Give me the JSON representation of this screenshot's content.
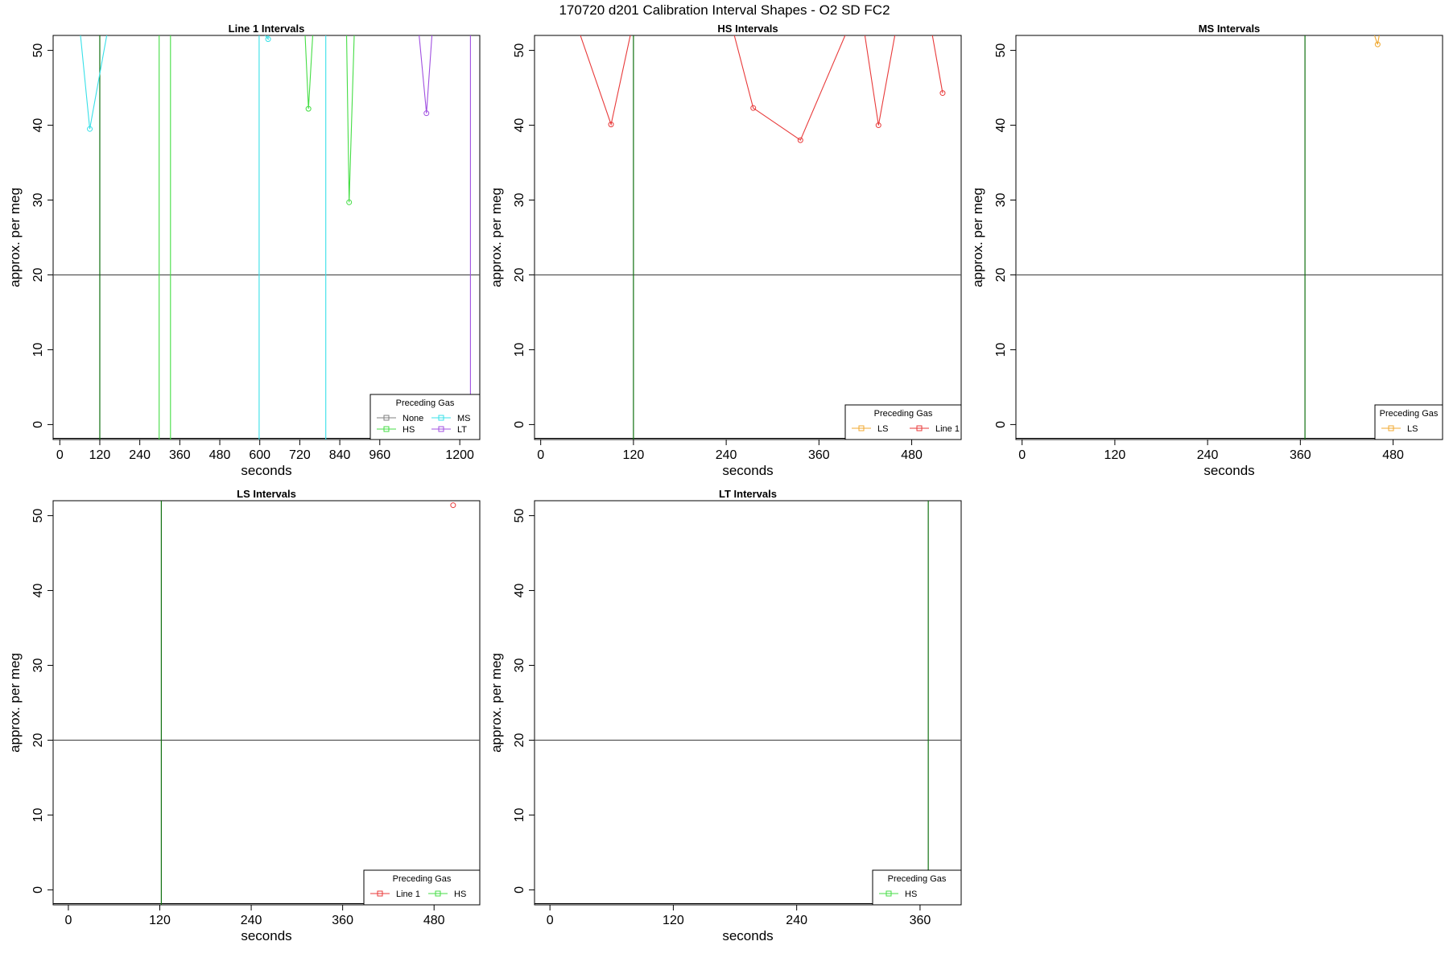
{
  "figure_title": "170720   d201   Calibration Interval Shapes - O2 SD FC2",
  "colors": {
    "None": "#808080",
    "MS": "#38e0e8",
    "HS": "#44dd44",
    "LT": "#a050e0",
    "LS": "#f0a830",
    "Line 1": "#e83a3a",
    "reference_vertical": "#107010",
    "reference_horizontal": "#555555"
  },
  "chart_data": [
    {
      "type": "line",
      "title": "Line 1 Intervals",
      "xlabel": "seconds",
      "ylabel": "approx. per meg",
      "xlim": [
        -20,
        1260
      ],
      "ylim": [
        -2,
        52
      ],
      "xticks": [
        0,
        120,
        240,
        360,
        480,
        600,
        720,
        840,
        960,
        1200
      ],
      "yticks": [
        0,
        10,
        20,
        30,
        40,
        50
      ],
      "hline": 20,
      "vlines": [
        120
      ],
      "legend": {
        "title": "Preceding Gas",
        "position": "bottom-right",
        "columns": 2,
        "entries": [
          "None",
          "MS",
          "HS",
          "LT"
        ]
      },
      "series": [
        {
          "name": "MS",
          "x": [
            60,
            90,
            145
          ],
          "y": [
            53,
            39.5,
            53
          ]
        },
        {
          "name": "MS",
          "x": [
            598,
            598,
            625,
            625
          ],
          "y": [
            -2,
            53,
            51.5,
            53
          ]
        },
        {
          "name": "MS",
          "x": [
            798,
            798
          ],
          "y": [
            -2,
            53
          ]
        },
        {
          "name": "HS",
          "x": [
            298,
            298
          ],
          "y": [
            -2,
            53
          ]
        },
        {
          "name": "HS",
          "x": [
            332,
            332
          ],
          "y": [
            -2,
            53
          ]
        },
        {
          "name": "HS",
          "x": [
            735,
            746,
            760
          ],
          "y": [
            53,
            42.2,
            53
          ]
        },
        {
          "name": "HS",
          "x": [
            860,
            868,
            884
          ],
          "y": [
            53,
            29.7,
            53
          ]
        },
        {
          "name": "LT",
          "x": [
            1076,
            1100,
            1118
          ],
          "y": [
            53,
            41.6,
            53
          ]
        },
        {
          "name": "LT",
          "x": [
            1232,
            1232
          ],
          "y": [
            53,
            -2
          ]
        }
      ]
    },
    {
      "type": "line",
      "title": "HS Intervals",
      "xlabel": "seconds",
      "ylabel": "approx. per meg",
      "xlim": [
        -8,
        544
      ],
      "ylim": [
        -2,
        52
      ],
      "xticks": [
        0,
        120,
        240,
        360,
        480
      ],
      "yticks": [
        0,
        10,
        20,
        30,
        40,
        50
      ],
      "hline": 20,
      "vlines": [
        120
      ],
      "legend": {
        "title": "Preceding Gas",
        "position": "bottom-right",
        "columns": 2,
        "entries": [
          "LS",
          "Line 1"
        ]
      },
      "series": [
        {
          "name": "LS",
          "x": [
            370
          ],
          "y": [
            52
          ]
        },
        {
          "name": "Line 1",
          "x": [
            48,
            91,
            118
          ],
          "y": [
            53,
            40.1,
            53
          ]
        },
        {
          "name": "Line 1",
          "x": [
            248,
            275,
            336,
            398
          ],
          "y": [
            53,
            42.3,
            38,
            53
          ]
        },
        {
          "name": "Line 1",
          "x": [
            418,
            437,
            460
          ],
          "y": [
            53,
            40,
            53
          ]
        },
        {
          "name": "Line 1",
          "x": [
            505,
            520
          ],
          "y": [
            53,
            44.3
          ]
        }
      ]
    },
    {
      "type": "line",
      "title": "MS Intervals",
      "xlabel": "seconds",
      "ylabel": "approx. per meg",
      "xlim": [
        -8,
        544
      ],
      "ylim": [
        -2,
        52
      ],
      "xticks": [
        0,
        120,
        240,
        360,
        480
      ],
      "yticks": [
        0,
        10,
        20,
        30,
        40,
        50
      ],
      "hline": 20,
      "vlines": [
        366
      ],
      "legend": {
        "title": "Preceding Gas",
        "position": "bottom-right",
        "columns": 1,
        "entries": [
          "LS"
        ]
      },
      "series": [
        {
          "name": "LS",
          "x": [
            452,
            456,
            460,
            462
          ],
          "y": [
            53,
            52,
            50.8,
            52
          ]
        }
      ]
    },
    {
      "type": "line",
      "title": "LS Intervals",
      "xlabel": "seconds",
      "ylabel": "approx. per meg",
      "xlim": [
        -20,
        540
      ],
      "ylim": [
        -2,
        52
      ],
      "xticks": [
        0,
        120,
        240,
        360,
        480
      ],
      "yticks": [
        0,
        10,
        20,
        30,
        40,
        50
      ],
      "hline": 20,
      "vlines": [
        122
      ],
      "legend": {
        "title": "Preceding Gas",
        "position": "bottom-right",
        "columns": 2,
        "entries": [
          "Line 1",
          "HS"
        ]
      },
      "series": [
        {
          "name": "Line 1",
          "x": [
            505
          ],
          "y": [
            51.4
          ]
        }
      ]
    },
    {
      "type": "line",
      "title": "LT Intervals",
      "xlabel": "seconds",
      "ylabel": "approx. per meg",
      "xlim": [
        -15,
        400
      ],
      "ylim": [
        -2,
        52
      ],
      "xticks": [
        0,
        120,
        240,
        360
      ],
      "yticks": [
        0,
        10,
        20,
        30,
        40,
        50
      ],
      "hline": 20,
      "vlines": [
        368
      ],
      "legend": {
        "title": "Preceding Gas",
        "position": "bottom-right",
        "columns": 1,
        "entries": [
          "HS"
        ]
      },
      "series": []
    }
  ]
}
